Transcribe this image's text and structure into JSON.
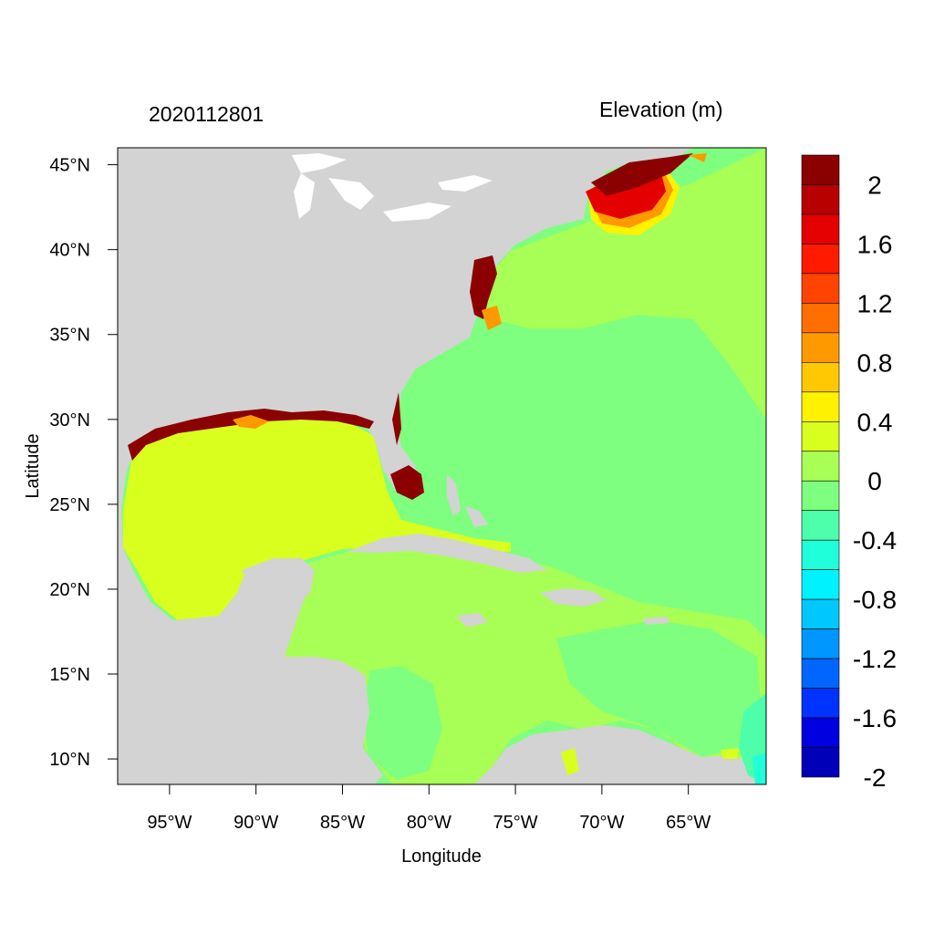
{
  "header": {
    "date_label": "2020112801",
    "variable_label": "Elevation (m)"
  },
  "axes": {
    "xlabel": "Longitude",
    "ylabel": "Latitude",
    "lon_range": [
      -98,
      -60.5
    ],
    "lat_range": [
      8.5,
      46
    ],
    "x_ticks": [
      {
        "value": -95,
        "label": "95°W"
      },
      {
        "value": -90,
        "label": "90°W"
      },
      {
        "value": -85,
        "label": "85°W"
      },
      {
        "value": -80,
        "label": "80°W"
      },
      {
        "value": -75,
        "label": "75°W"
      },
      {
        "value": -70,
        "label": "70°W"
      },
      {
        "value": -65,
        "label": "65°W"
      }
    ],
    "y_ticks": [
      {
        "value": 45,
        "label": "45°N"
      },
      {
        "value": 40,
        "label": "40°N"
      },
      {
        "value": 35,
        "label": "35°N"
      },
      {
        "value": 30,
        "label": "30°N"
      },
      {
        "value": 25,
        "label": "25°N"
      },
      {
        "value": 20,
        "label": "20°N"
      },
      {
        "value": 15,
        "label": "15°N"
      },
      {
        "value": 10,
        "label": "10°N"
      }
    ]
  },
  "colorbar": {
    "levels": [
      {
        "color": "#8b0000"
      },
      {
        "color": "#b80000"
      },
      {
        "color": "#e50000"
      },
      {
        "color": "#ff1a00"
      },
      {
        "color": "#ff4400"
      },
      {
        "color": "#ff6e00"
      },
      {
        "color": "#ff9900"
      },
      {
        "color": "#ffc800"
      },
      {
        "color": "#fff200"
      },
      {
        "color": "#d9ff1f"
      },
      {
        "color": "#a8ff55"
      },
      {
        "color": "#7fff7f"
      },
      {
        "color": "#4dffaa"
      },
      {
        "color": "#1fffd9"
      },
      {
        "color": "#00f2ff"
      },
      {
        "color": "#00c8ff"
      },
      {
        "color": "#0096ff"
      },
      {
        "color": "#0066ff"
      },
      {
        "color": "#0033ff"
      },
      {
        "color": "#0000e0"
      },
      {
        "color": "#0000b8"
      }
    ],
    "labels": [
      "2",
      "1.6",
      "1.2",
      "0.8",
      "0.4",
      "0",
      "-0.4",
      "-0.8",
      "-1.2",
      "-1.6",
      "-2"
    ]
  },
  "colors": {
    "land": "#d3d3d3",
    "ocean_default": "#7fff7f",
    "caribbean": "#a8ff55",
    "gulf": "#d9ff1f",
    "surge_high": "#8b0000",
    "surge_mid": "#e50000",
    "surge_orange": "#ff9900",
    "yellow": "#fff200",
    "lakes": "#ffffff"
  }
}
